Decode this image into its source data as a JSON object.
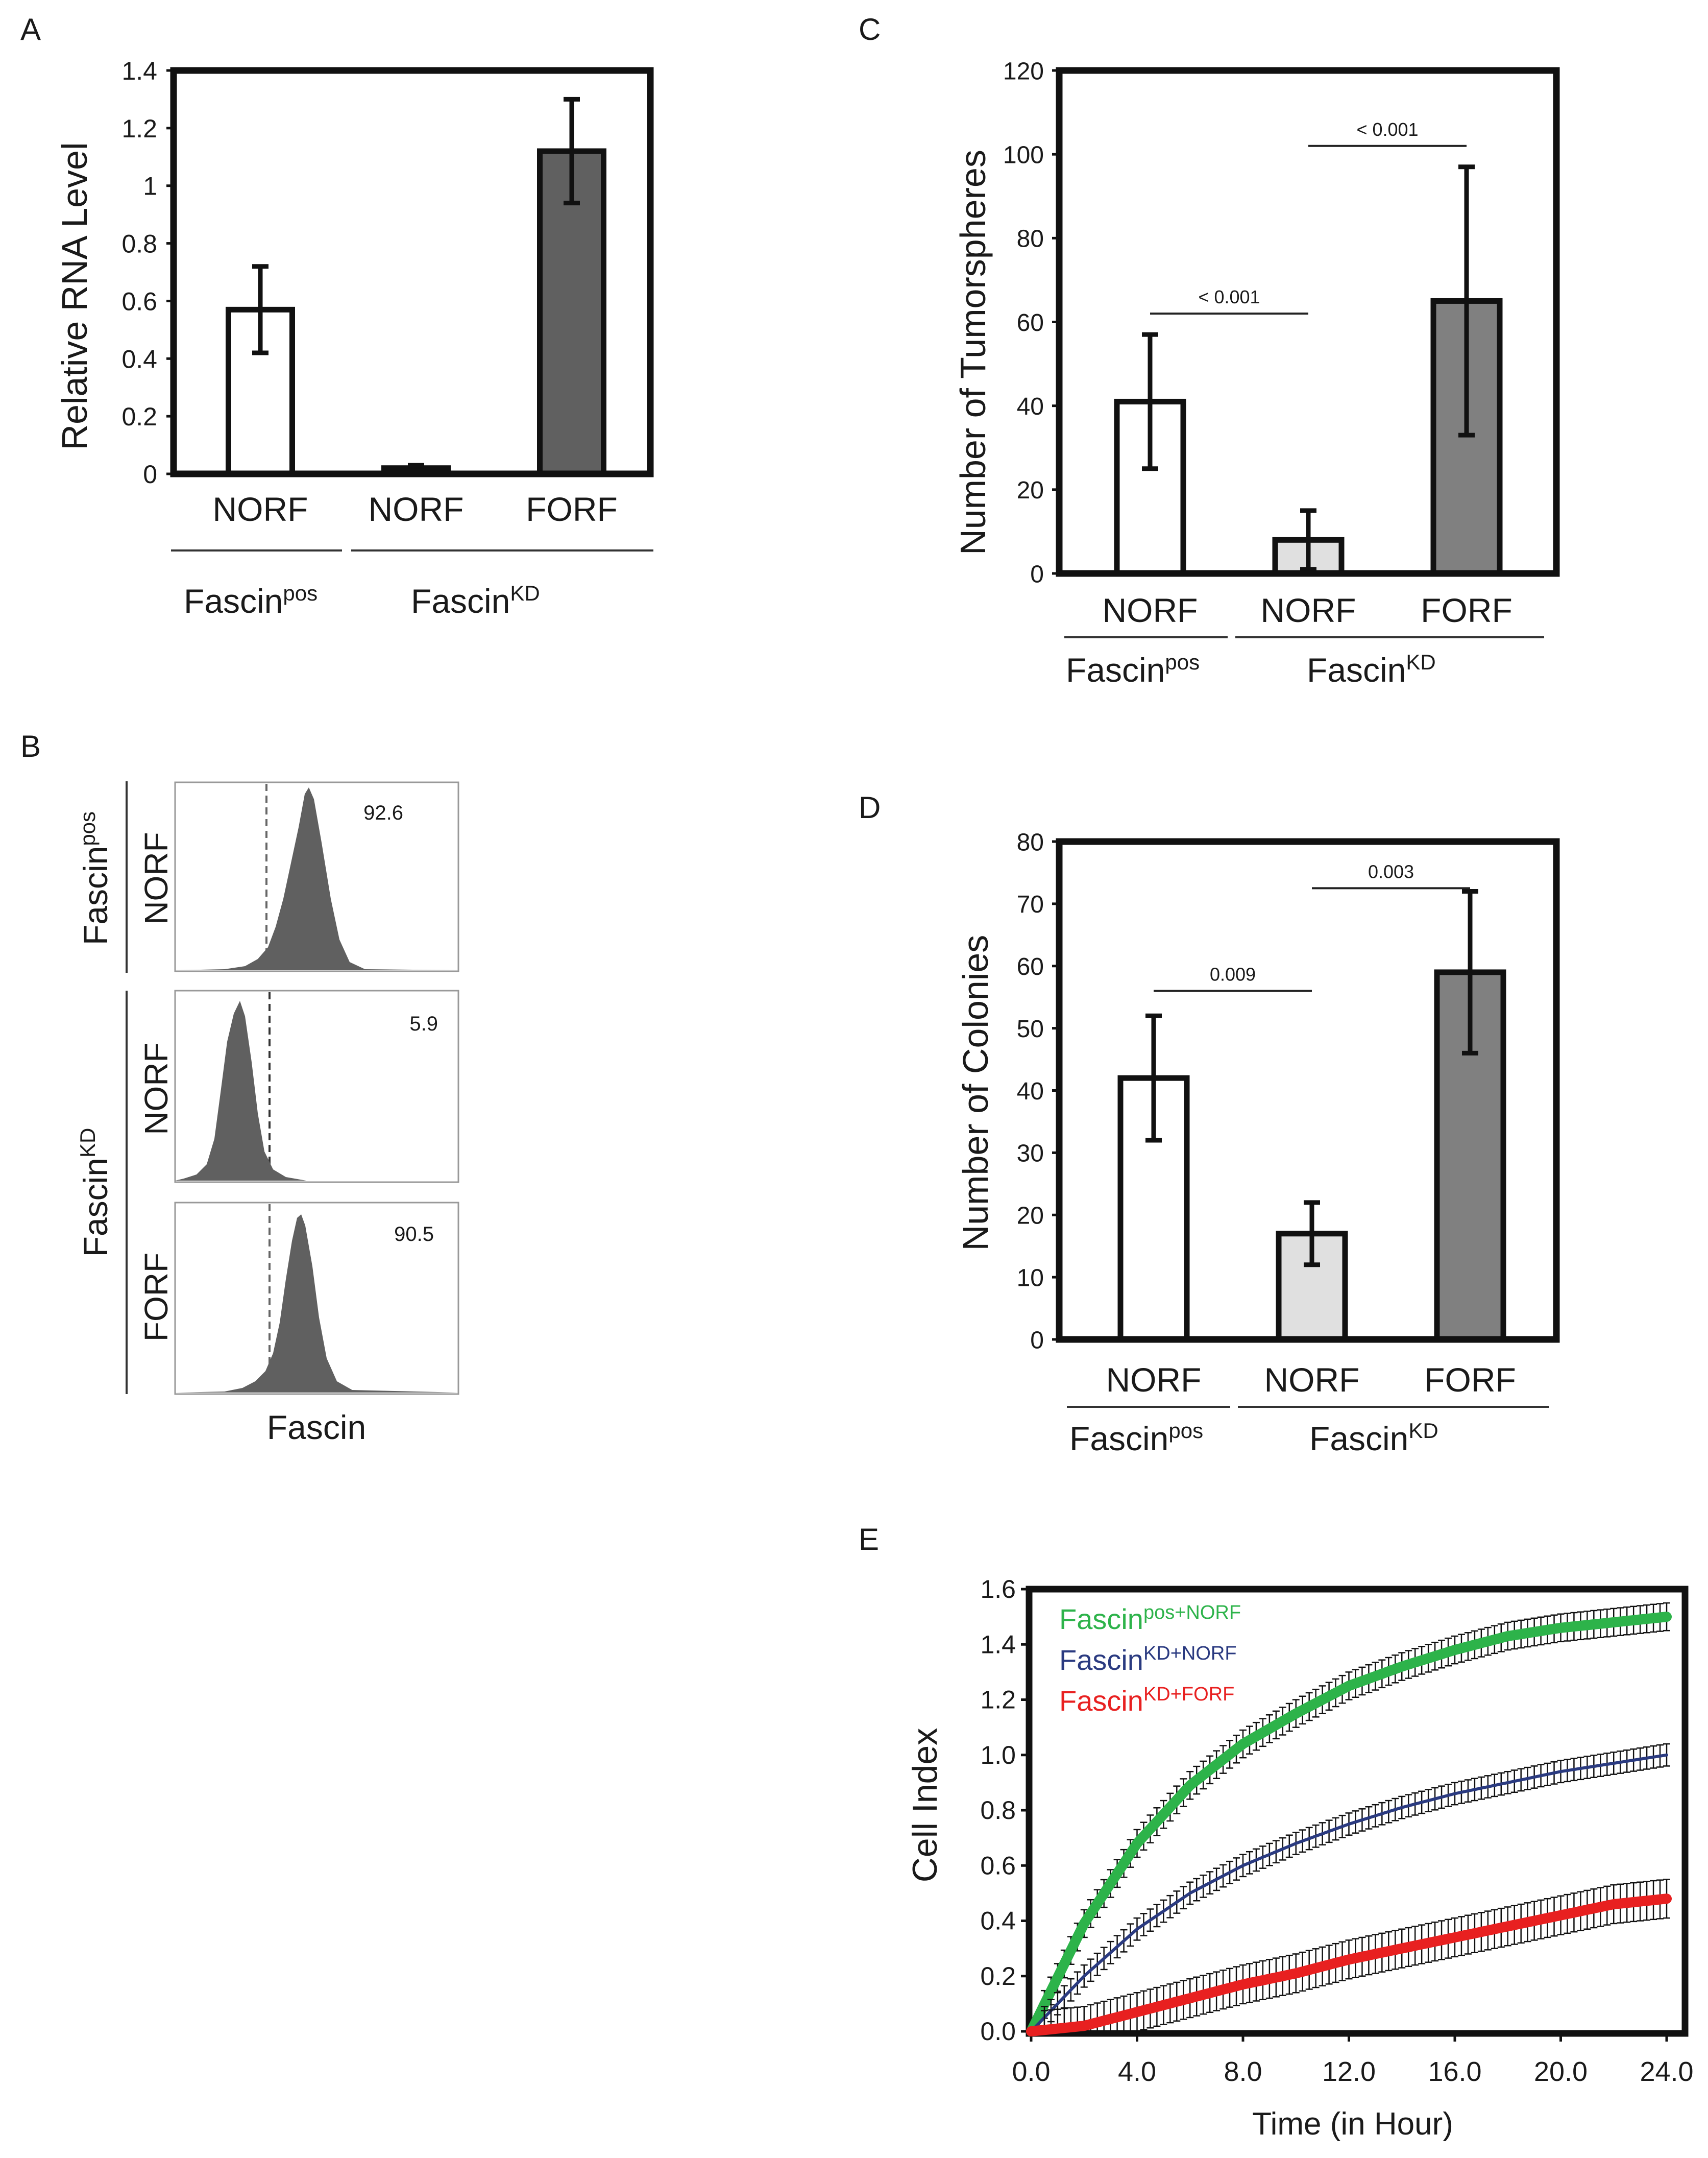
{
  "chart_data": [
    {
      "id": "A",
      "panel_label": "A",
      "type": "bar",
      "ylabel": "Relative RNA Level",
      "ylim": [
        0,
        1.4
      ],
      "yticks": [
        {
          "v": 0,
          "t": "0"
        },
        {
          "v": 0.2,
          "t": "0.2"
        },
        {
          "v": 0.4,
          "t": "0.4"
        },
        {
          "v": 0.6,
          "t": "0.6"
        },
        {
          "v": 0.8,
          "t": "0.8"
        },
        {
          "v": 1.0,
          "t": "1"
        },
        {
          "v": 1.2,
          "t": "1.2"
        },
        {
          "v": 1.4,
          "t": "1.4"
        }
      ],
      "categories": [
        "NORF",
        "NORF",
        "FORF"
      ],
      "values": [
        0.57,
        0.02,
        1.12
      ],
      "errors": [
        0.15,
        0.01,
        0.18
      ],
      "bar_colors": [
        "#ffffff",
        "#ffffff",
        "#606060"
      ],
      "groups": [
        {
          "base": "Fascin",
          "sup": "pos"
        },
        {
          "base": "Fascin",
          "sup": "KD"
        }
      ],
      "brackets": []
    },
    {
      "id": "C",
      "panel_label": "C",
      "type": "bar",
      "ylabel": "Number of Tumorspheres",
      "ylim": [
        0,
        120
      ],
      "yticks": [
        {
          "v": 0,
          "t": "0"
        },
        {
          "v": 20,
          "t": "20"
        },
        {
          "v": 40,
          "t": "40"
        },
        {
          "v": 60,
          "t": "60"
        },
        {
          "v": 80,
          "t": "80"
        },
        {
          "v": 100,
          "t": "100"
        },
        {
          "v": 120,
          "t": "120"
        }
      ],
      "categories": [
        "NORF",
        "NORF",
        "FORF"
      ],
      "values": [
        41,
        8,
        65
      ],
      "errors": [
        16,
        7,
        32
      ],
      "bar_colors": [
        "#ffffff",
        "#e0e0e0",
        "#808080"
      ],
      "groups": [
        {
          "base": "Fascin",
          "sup": "pos"
        },
        {
          "base": "Fascin",
          "sup": "KD"
        }
      ],
      "brackets": [
        {
          "from": 0,
          "to": 1,
          "y": 62,
          "label": "< 0.001"
        },
        {
          "from": 1,
          "to": 2,
          "y": 102,
          "label": "< 0.001"
        }
      ]
    },
    {
      "id": "D",
      "panel_label": "D",
      "type": "bar",
      "ylabel": "Number of Colonies",
      "ylim": [
        0,
        80
      ],
      "yticks": [
        {
          "v": 0,
          "t": "0"
        },
        {
          "v": 10,
          "t": "10"
        },
        {
          "v": 20,
          "t": "20"
        },
        {
          "v": 30,
          "t": "30"
        },
        {
          "v": 40,
          "t": "40"
        },
        {
          "v": 50,
          "t": "50"
        },
        {
          "v": 60,
          "t": "60"
        },
        {
          "v": 70,
          "t": "70"
        },
        {
          "v": 80,
          "t": "80"
        }
      ],
      "categories": [
        "NORF",
        "NORF",
        "FORF"
      ],
      "values": [
        42,
        17,
        59
      ],
      "errors": [
        10,
        5,
        13
      ],
      "bar_colors": [
        "#ffffff",
        "#e0e0e0",
        "#808080"
      ],
      "groups": [
        {
          "base": "Fascin",
          "sup": "pos"
        },
        {
          "base": "Fascin",
          "sup": "KD"
        }
      ],
      "brackets": [
        {
          "from": 0,
          "to": 1,
          "y": 56,
          "label": "0.009"
        },
        {
          "from": 1,
          "to": 2,
          "y": 72.5,
          "label": "0.003"
        }
      ]
    },
    {
      "id": "E",
      "panel_label": "E",
      "type": "line",
      "xlabel": "Time (in Hour)",
      "ylabel": "Cell Index",
      "xlim": [
        0,
        24
      ],
      "ylim": [
        0,
        1.6
      ],
      "xticks": [
        "0.0",
        "4.0",
        "8.0",
        "12.0",
        "16.0",
        "20.0",
        "24.0"
      ],
      "yticks": [
        "0.0",
        "0.2",
        "0.4",
        "0.6",
        "0.8",
        "1.0",
        "1.2",
        "1.4",
        "1.6"
      ],
      "x": [
        0,
        2,
        4,
        6,
        8,
        10,
        12,
        14,
        16,
        18,
        20,
        22,
        24
      ],
      "series": [
        {
          "name": "Fascin pos+NORF",
          "base": "Fascin",
          "sup": "pos+NORF",
          "color": "#2db34a",
          "values": [
            0.0,
            0.39,
            0.68,
            0.89,
            1.04,
            1.15,
            1.25,
            1.32,
            1.38,
            1.43,
            1.46,
            1.48,
            1.5
          ],
          "error": 0.05
        },
        {
          "name": "Fascin KD+NORF",
          "base": "Fascin",
          "sup": "KD+NORF",
          "color": "#2a3a80",
          "values": [
            0.0,
            0.2,
            0.37,
            0.5,
            0.6,
            0.68,
            0.75,
            0.81,
            0.86,
            0.9,
            0.94,
            0.97,
            1.0
          ],
          "error": 0.04
        },
        {
          "name": "Fascin KD+FORF",
          "base": "Fascin",
          "sup": "KD+FORF",
          "color": "#e82020",
          "values": [
            0.0,
            0.02,
            0.07,
            0.12,
            0.17,
            0.21,
            0.26,
            0.3,
            0.34,
            0.38,
            0.42,
            0.46,
            0.48
          ],
          "error": 0.07
        }
      ]
    }
  ],
  "flow": {
    "panel_label": "B",
    "xlabel": "Fascin",
    "groups": [
      {
        "base": "Fascin",
        "sup": "pos"
      },
      {
        "base": "Fascin",
        "sup": "KD"
      }
    ],
    "histograms": [
      {
        "label": "NORF",
        "value": "92.6"
      },
      {
        "label": "NORF",
        "value": "5.9"
      },
      {
        "label": "FORF",
        "value": "90.5"
      }
    ]
  }
}
